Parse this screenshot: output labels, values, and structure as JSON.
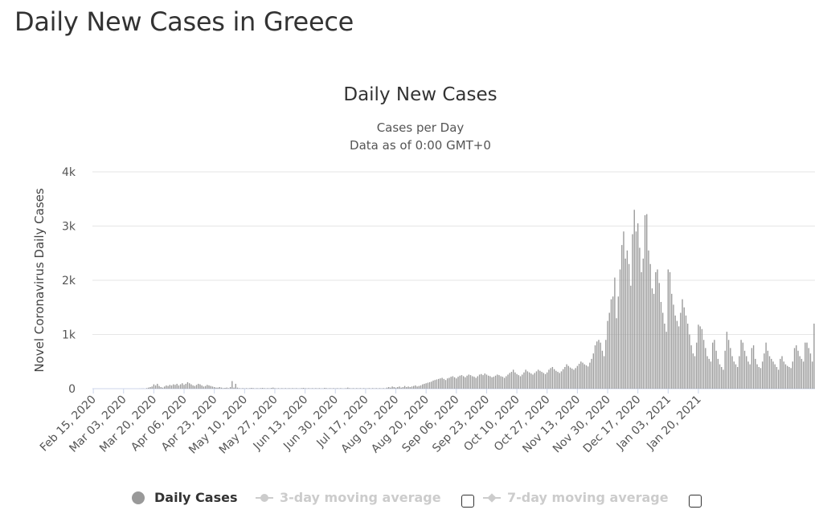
{
  "page_title": "Daily New Cases in Greece",
  "chart_data": {
    "type": "bar",
    "title": "Daily New Cases",
    "subtitle": [
      "Cases per Day",
      "Data as of 0:00 GMT+0"
    ],
    "ylabel": "Novel Coronavirus Daily Cases",
    "xlabel": "",
    "ylim": [
      0,
      4000
    ],
    "yticks": [
      {
        "value": 0,
        "label": "0"
      },
      {
        "value": 1000,
        "label": "1k"
      },
      {
        "value": 2000,
        "label": "2k"
      },
      {
        "value": 3000,
        "label": "3k"
      },
      {
        "value": 4000,
        "label": "4k"
      }
    ],
    "x_start": "2020-02-15",
    "x_end": "2021-02-01",
    "xtick_labels": [
      "Feb 15, 2020",
      "Mar 03, 2020",
      "Mar 20, 2020",
      "Apr 06, 2020",
      "Apr 23, 2020",
      "May 10, 2020",
      "May 27, 2020",
      "Jun 13, 2020",
      "Jun 30, 2020",
      "Jul 17, 2020",
      "Aug 03, 2020",
      "Aug 20, 2020",
      "Sep 06, 2020",
      "Sep 23, 2020",
      "Oct 10, 2020",
      "Oct 27, 2020",
      "Nov 13, 2020",
      "Nov 30, 2020",
      "Dec 17, 2020",
      "Jan 03, 2021",
      "Jan 20, 2021"
    ],
    "grid": true,
    "bar_color": "#999999",
    "series": [
      {
        "name": "Daily Cases",
        "values": [
          0,
          0,
          0,
          0,
          0,
          0,
          0,
          0,
          0,
          0,
          0,
          0,
          0,
          0,
          0,
          0,
          0,
          0,
          0,
          0,
          0,
          0,
          0,
          0,
          0,
          0,
          1,
          2,
          3,
          0,
          10,
          20,
          30,
          40,
          80,
          60,
          90,
          50,
          30,
          20,
          40,
          60,
          50,
          70,
          60,
          80,
          70,
          90,
          60,
          80,
          100,
          70,
          90,
          120,
          100,
          80,
          60,
          50,
          70,
          90,
          80,
          60,
          40,
          50,
          70,
          60,
          50,
          40,
          30,
          20,
          20,
          30,
          20,
          10,
          15,
          20,
          10,
          30,
          140,
          20,
          90,
          20,
          10,
          5,
          10,
          5,
          10,
          5,
          10,
          15,
          10,
          5,
          10,
          5,
          10,
          15,
          10,
          5,
          10,
          5,
          15,
          20,
          10,
          5,
          10,
          5,
          10,
          5,
          10,
          5,
          10,
          5,
          10,
          5,
          10,
          5,
          5,
          10,
          15,
          10,
          5,
          10,
          5,
          10,
          5,
          10,
          5,
          10,
          5,
          5,
          15,
          10,
          5,
          10,
          5,
          10,
          5,
          10,
          5,
          10,
          5,
          5,
          10,
          20,
          10,
          5,
          10,
          5,
          10,
          5,
          10,
          5,
          10,
          5,
          5,
          10,
          5,
          10,
          5,
          10,
          5,
          10,
          5,
          10,
          5,
          20,
          30,
          20,
          40,
          30,
          20,
          30,
          40,
          20,
          30,
          50,
          30,
          40,
          30,
          40,
          50,
          60,
          40,
          50,
          60,
          80,
          90,
          100,
          110,
          120,
          130,
          150,
          160,
          170,
          180,
          190,
          200,
          180,
          160,
          190,
          200,
          220,
          230,
          210,
          190,
          220,
          240,
          250,
          230,
          210,
          240,
          260,
          250,
          230,
          220,
          200,
          230,
          260,
          270,
          250,
          280,
          260,
          240,
          230,
          210,
          220,
          240,
          260,
          250,
          230,
          220,
          200,
          230,
          260,
          290,
          310,
          350,
          300,
          270,
          250,
          230,
          260,
          300,
          350,
          320,
          300,
          280,
          260,
          290,
          320,
          350,
          330,
          310,
          290,
          270,
          300,
          350,
          380,
          400,
          360,
          330,
          310,
          290,
          320,
          360,
          400,
          450,
          420,
          390,
          370,
          350,
          380,
          420,
          460,
          500,
          480,
          450,
          430,
          410,
          480,
          550,
          650,
          800,
          870,
          900,
          850,
          700,
          600,
          900,
          1250,
          1400,
          1650,
          1700,
          2050,
          1300,
          1700,
          2200,
          2650,
          2900,
          2400,
          2550,
          2300,
          1900,
          2850,
          3300,
          2900,
          3050,
          2600,
          2150,
          2400,
          3200,
          3220,
          2550,
          2300,
          1850,
          1750,
          2150,
          2200,
          1950,
          1600,
          1400,
          1200,
          1050,
          2200,
          2150,
          1750,
          1550,
          1350,
          1250,
          1150,
          1400,
          1650,
          1500,
          1350,
          1200,
          1000,
          800,
          650,
          600,
          850,
          1180,
          1150,
          1100,
          900,
          750,
          600,
          550,
          500,
          850,
          900,
          700,
          550,
          450,
          400,
          350,
          700,
          1050,
          900,
          750,
          600,
          500,
          450,
          400,
          600,
          900,
          850,
          700,
          600,
          500,
          450,
          750,
          800,
          550,
          450,
          400,
          380,
          500,
          650,
          850,
          700,
          600,
          550,
          500,
          450,
          400,
          350,
          550,
          600,
          500,
          450,
          420,
          400,
          380,
          500,
          750,
          800,
          700,
          600,
          550,
          500,
          850,
          850,
          750,
          650,
          500,
          1200
        ]
      }
    ],
    "legend": [
      {
        "label": "Daily Cases",
        "active": true
      },
      {
        "label": "3-day moving average",
        "active": false
      },
      {
        "label": "7-day moving average",
        "active": false
      }
    ]
  }
}
